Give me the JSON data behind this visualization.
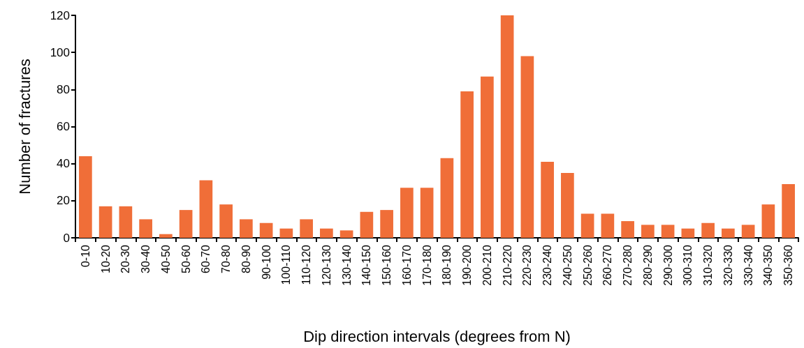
{
  "chart_data": {
    "type": "bar",
    "xlabel": "Dip direction intervals (degrees from N)",
    "ylabel": "Number of fractures",
    "categories": [
      "0-10",
      "10-20",
      "20-30",
      "30-40",
      "40-50",
      "50-60",
      "60-70",
      "70-80",
      "80-90",
      "90-100",
      "100-110",
      "110-120",
      "120-130",
      "130-140",
      "140-150",
      "150-160",
      "160-170",
      "170-180",
      "180-190",
      "190-200",
      "200-210",
      "210-220",
      "220-230",
      "230-240",
      "240-250",
      "250-260",
      "260-270",
      "270-280",
      "280-290",
      "290-300",
      "300-310",
      "310-320",
      "320-330",
      "330-340",
      "340-350",
      "350-360"
    ],
    "values": [
      44,
      17,
      17,
      10,
      2,
      15,
      31,
      18,
      10,
      8,
      5,
      10,
      5,
      4,
      14,
      15,
      27,
      27,
      43,
      79,
      87,
      120,
      98,
      41,
      35,
      13,
      13,
      9,
      7,
      7,
      5,
      8,
      5,
      7,
      18,
      29
    ],
    "color": "#f06e38",
    "ylim": [
      0,
      120
    ],
    "yticks": [
      0,
      20,
      40,
      60,
      80,
      100,
      120
    ],
    "grid": false
  }
}
